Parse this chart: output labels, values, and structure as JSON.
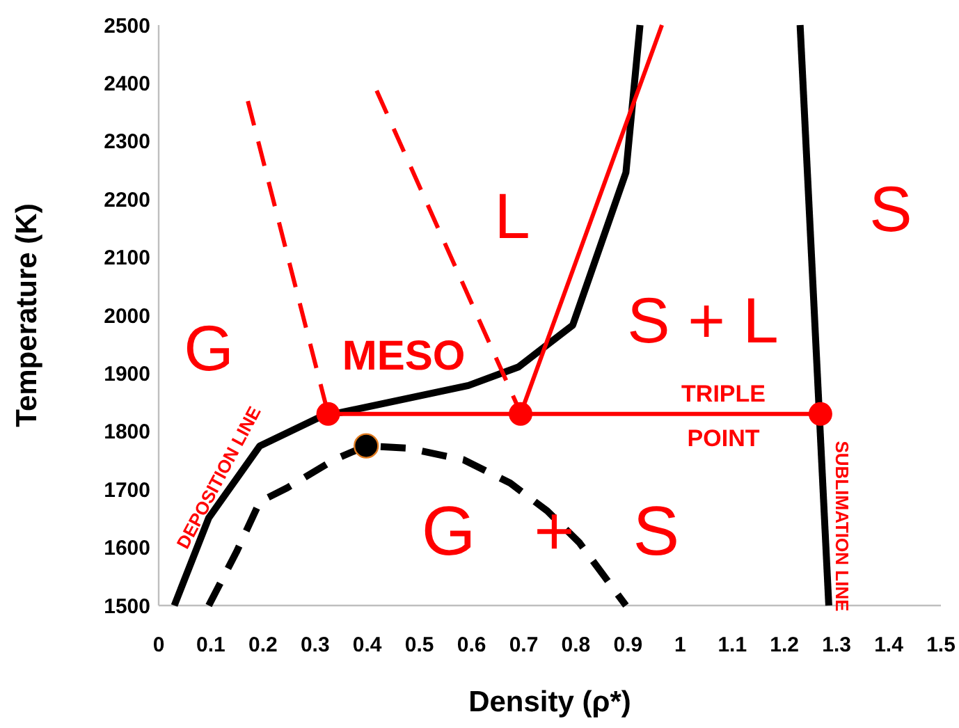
{
  "chart_data": {
    "type": "line",
    "xlabel": "Density (ρ*)",
    "ylabel": "Temperature (K)",
    "xlim": [
      0,
      1.5
    ],
    "xticks": [
      0,
      0.1,
      0.2,
      0.3,
      0.4,
      0.5,
      0.6,
      0.7,
      0.8,
      0.9,
      1,
      1.1,
      1.2,
      1.3,
      1.4,
      1.5
    ],
    "ylim": [
      1500,
      2500
    ],
    "yticks": [
      1500,
      1600,
      1700,
      1800,
      1900,
      2000,
      2100,
      2200,
      2300,
      2400,
      2500
    ],
    "grid": false,
    "series": [
      {
        "color": "#000000",
        "line_style": "solid",
        "x": [
          0.03,
          0.096,
          0.194,
          0.31,
          0.594,
          0.69,
          0.794,
          0.896,
          0.923
        ],
        "values": [
          1500,
          1651,
          1775,
          1825,
          1879,
          1911,
          1983,
          2246,
          2500
        ]
      },
      {
        "color": "#000000",
        "line_style": "solid",
        "x": [
          1.23,
          1.285
        ],
        "values": [
          2500,
          1500
        ]
      },
      {
        "type": "line",
        "color": "#000000",
        "line_style": "dashed",
        "x": [
          0.096,
          0.149,
          0.194,
          0.247,
          0.336,
          0.398,
          0.478,
          0.585,
          0.674,
          0.745,
          0.807,
          0.896
        ],
        "values": [
          1500,
          1592,
          1679,
          1703,
          1751,
          1775,
          1771,
          1751,
          1711,
          1663,
          1608,
          1500
        ]
      },
      {
        "type": "line",
        "color": "#ff0000",
        "line_style": "dashed",
        "x": [
          0.171,
          0.325
        ],
        "values": [
          2369,
          1830
        ]
      },
      {
        "type": "line",
        "color": "#ff0000",
        "line_style": "dashed",
        "x": [
          0.418,
          0.69
        ],
        "values": [
          2387,
          1840
        ]
      },
      {
        "type": "line",
        "color": "#ff0000",
        "line_style": "solid",
        "x": [
          0.694,
          0.965
        ],
        "values": [
          1830,
          2500
        ]
      },
      {
        "type": "line",
        "color": "#ff0000",
        "line_style": "solid",
        "x": [
          0.325,
          1.269
        ],
        "values": [
          1830,
          1830
        ]
      },
      {
        "type": "scatter",
        "color": "#ff0000",
        "marker": "circle",
        "x": [
          0.325,
          0.694,
          1.269
        ],
        "values": [
          1830,
          1830,
          1830
        ]
      },
      {
        "type": "scatter",
        "color": "#000000",
        "marker": "circle",
        "x": [
          0.398
        ],
        "values": [
          1775
        ]
      }
    ],
    "annotations": [
      "G",
      "MESO",
      "L",
      "S + L",
      "S",
      {
        "text": "G + S",
        "x": 0.77,
        "y": 1630
      },
      {
        "text": "TRIPLE POINT",
        "x": 1.083,
        "y": 1830
      },
      "DEPOSITION LINE",
      "SUBLIMATION LINE"
    ]
  }
}
